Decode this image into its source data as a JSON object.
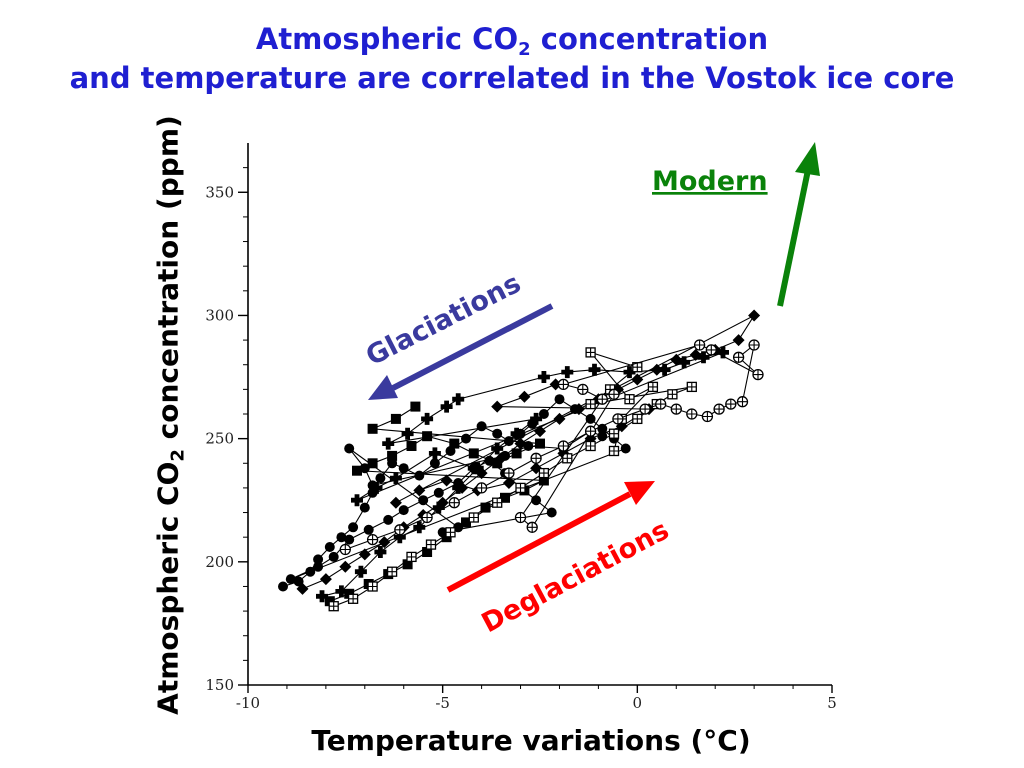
{
  "title": {
    "line1_prefix": "Atmospheric CO",
    "line1_sub": "2",
    "line1_suffix": " concentration",
    "line2": "and temperature are correlated in the Vostok ice core"
  },
  "annotations": {
    "glaciations": "Glaciations",
    "deglaciations": "Deglaciations",
    "modern": "Modern"
  },
  "colors": {
    "title": "#1f1fd1",
    "glaciations_arrow": "#3a3a9e",
    "deglaciations_arrow": "#ff0000",
    "modern_arrow": "#0a820a",
    "markers": "#000000"
  },
  "chart_data": {
    "type": "scatter",
    "xlabel": "Temperature variations (°C)",
    "ylabel_prefix": "Atmospheric CO",
    "ylabel_sub": "2",
    "ylabel_suffix": " concentration (ppm)",
    "xlim": [
      -10,
      5
    ],
    "ylim": [
      150,
      370
    ],
    "xticks": [
      -10,
      -5,
      0,
      5
    ],
    "yticks": [
      150,
      200,
      250,
      300,
      350
    ],
    "xtick_labels": [
      "-10",
      "-5",
      "0",
      "5"
    ],
    "ytick_labels": [
      "150",
      "200",
      "250",
      "300",
      "350"
    ],
    "grid": false,
    "series": [
      {
        "marker": "circle",
        "points": [
          [
            -9.1,
            190
          ],
          [
            -8.7,
            192
          ],
          [
            -8.4,
            196
          ],
          [
            -8.2,
            201
          ],
          [
            -7.9,
            206
          ],
          [
            -7.6,
            210
          ],
          [
            -7.3,
            214
          ],
          [
            -7.0,
            222
          ],
          [
            -6.8,
            228
          ],
          [
            -6.6,
            234
          ],
          [
            -6.3,
            240
          ],
          [
            -6.0,
            238
          ],
          [
            -5.6,
            235
          ],
          [
            -5.2,
            240
          ],
          [
            -4.8,
            245
          ],
          [
            -4.4,
            250
          ],
          [
            -4.0,
            255
          ],
          [
            -3.6,
            252
          ],
          [
            -3.3,
            249
          ],
          [
            -3.0,
            252
          ],
          [
            -2.7,
            256
          ],
          [
            -2.4,
            260
          ],
          [
            -2.0,
            266
          ],
          [
            -1.6,
            262
          ],
          [
            -1.2,
            258
          ],
          [
            -0.9,
            254
          ],
          [
            -0.6,
            250
          ],
          [
            -0.3,
            246
          ],
          [
            -8.9,
            193
          ],
          [
            -8.2,
            198
          ],
          [
            -7.8,
            202
          ],
          [
            -7.4,
            209
          ],
          [
            -6.9,
            213
          ],
          [
            -6.4,
            217
          ],
          [
            -6.0,
            221
          ],
          [
            -5.5,
            225
          ],
          [
            -5.1,
            228
          ],
          [
            -4.6,
            232
          ],
          [
            -4.2,
            238
          ],
          [
            -3.8,
            241
          ],
          [
            -3.4,
            236
          ],
          [
            -3.0,
            230
          ],
          [
            -2.6,
            225
          ],
          [
            -2.2,
            220
          ],
          [
            -5.0,
            212
          ],
          [
            -4.6,
            214
          ],
          [
            -7.4,
            246
          ],
          [
            -7.0,
            238
          ],
          [
            -6.8,
            231
          ],
          [
            -3.4,
            243
          ],
          [
            -2.8,
            247
          ],
          [
            -1.9,
            246
          ],
          [
            -1.2,
            253
          ],
          [
            -0.9,
            251
          ]
        ]
      },
      {
        "marker": "diamond",
        "points": [
          [
            -8.6,
            189
          ],
          [
            -8.0,
            193
          ],
          [
            -7.5,
            198
          ],
          [
            -7.0,
            203
          ],
          [
            -6.5,
            208
          ],
          [
            -6.0,
            214
          ],
          [
            -5.5,
            219
          ],
          [
            -5.0,
            224
          ],
          [
            -4.5,
            230
          ],
          [
            -4.0,
            236
          ],
          [
            -3.5,
            242
          ],
          [
            -3.0,
            248
          ],
          [
            -2.5,
            253
          ],
          [
            -2.0,
            258
          ],
          [
            -1.5,
            262
          ],
          [
            -1.0,
            266
          ],
          [
            -0.5,
            270
          ],
          [
            0.0,
            274
          ],
          [
            0.5,
            278
          ],
          [
            1.0,
            282
          ],
          [
            1.5,
            284
          ],
          [
            2.0,
            286
          ],
          [
            2.6,
            290
          ],
          [
            3.0,
            300
          ],
          [
            -6.2,
            224
          ],
          [
            -5.6,
            229
          ],
          [
            -4.9,
            233
          ],
          [
            -4.1,
            229
          ],
          [
            -3.3,
            232
          ],
          [
            -2.6,
            238
          ],
          [
            -1.9,
            244
          ],
          [
            -1.2,
            250
          ],
          [
            -0.4,
            255
          ],
          [
            0.3,
            262
          ],
          [
            -3.6,
            263
          ],
          [
            -2.9,
            267
          ],
          [
            -2.1,
            272
          ]
        ]
      },
      {
        "marker": "plus",
        "points": [
          [
            -8.1,
            186
          ],
          [
            -7.6,
            188
          ],
          [
            -7.1,
            196
          ],
          [
            -6.6,
            204
          ],
          [
            -6.1,
            210
          ],
          [
            -5.6,
            214
          ],
          [
            -5.1,
            222
          ],
          [
            -4.6,
            230
          ],
          [
            -4.1,
            238
          ],
          [
            -3.6,
            246
          ],
          [
            -3.1,
            252
          ],
          [
            -2.6,
            258
          ],
          [
            -6.4,
            248
          ],
          [
            -5.9,
            252
          ],
          [
            -5.4,
            258
          ],
          [
            -4.9,
            263
          ],
          [
            -4.6,
            266
          ],
          [
            -2.4,
            275
          ],
          [
            -1.8,
            277
          ],
          [
            -1.1,
            278
          ],
          [
            -0.2,
            277
          ],
          [
            0.7,
            278
          ],
          [
            1.2,
            281
          ],
          [
            1.7,
            283
          ],
          [
            2.2,
            285
          ],
          [
            -7.2,
            225
          ],
          [
            -6.7,
            230
          ],
          [
            -6.2,
            234
          ],
          [
            -5.2,
            244
          ],
          [
            -4.2,
            238
          ]
        ]
      },
      {
        "marker": "square",
        "points": [
          [
            -7.9,
            184
          ],
          [
            -7.4,
            187
          ],
          [
            -6.9,
            191
          ],
          [
            -6.4,
            195
          ],
          [
            -5.9,
            199
          ],
          [
            -5.4,
            204
          ],
          [
            -4.9,
            210
          ],
          [
            -4.4,
            216
          ],
          [
            -3.9,
            222
          ],
          [
            -3.4,
            226
          ],
          [
            -2.9,
            229
          ],
          [
            -2.4,
            233
          ],
          [
            -7.2,
            237
          ],
          [
            -6.8,
            240
          ],
          [
            -6.3,
            243
          ],
          [
            -5.8,
            247
          ],
          [
            -5.4,
            251
          ],
          [
            -4.7,
            248
          ],
          [
            -4.2,
            244
          ],
          [
            -3.6,
            240
          ],
          [
            -3.1,
            244
          ],
          [
            -2.5,
            248
          ],
          [
            -6.8,
            254
          ],
          [
            -6.2,
            258
          ],
          [
            -5.7,
            263
          ]
        ]
      },
      {
        "marker": "boxcross",
        "points": [
          [
            -7.8,
            182
          ],
          [
            -7.3,
            185
          ],
          [
            -6.8,
            190
          ],
          [
            -6.3,
            196
          ],
          [
            -5.8,
            202
          ],
          [
            -5.3,
            207
          ],
          [
            -4.8,
            212
          ],
          [
            -4.2,
            218
          ],
          [
            -3.6,
            224
          ],
          [
            -3.0,
            230
          ],
          [
            -2.4,
            236
          ],
          [
            -1.8,
            242
          ],
          [
            -1.2,
            247
          ],
          [
            -0.6,
            252
          ],
          [
            0.0,
            258
          ],
          [
            0.5,
            264
          ],
          [
            0.9,
            268
          ],
          [
            1.4,
            271
          ],
          [
            -1.2,
            264
          ],
          [
            -0.7,
            270
          ],
          [
            0.0,
            279
          ],
          [
            -1.2,
            285
          ],
          [
            -0.2,
            266
          ],
          [
            0.4,
            271
          ],
          [
            -0.4,
            258
          ],
          [
            -0.6,
            245
          ]
        ]
      },
      {
        "marker": "circlecross",
        "points": [
          [
            -7.5,
            205
          ],
          [
            -6.8,
            209
          ],
          [
            -6.1,
            213
          ],
          [
            -5.4,
            218
          ],
          [
            -4.7,
            224
          ],
          [
            -4.0,
            230
          ],
          [
            -3.3,
            236
          ],
          [
            -2.6,
            242
          ],
          [
            -1.9,
            247
          ],
          [
            -1.2,
            253
          ],
          [
            -0.5,
            258
          ],
          [
            0.2,
            262
          ],
          [
            0.6,
            264
          ],
          [
            1.0,
            262
          ],
          [
            1.4,
            260
          ],
          [
            1.8,
            259
          ],
          [
            2.1,
            262
          ],
          [
            2.4,
            264
          ],
          [
            2.7,
            265
          ],
          [
            3.0,
            288
          ],
          [
            2.6,
            283
          ],
          [
            3.1,
            276
          ],
          [
            1.9,
            286
          ],
          [
            1.6,
            288
          ],
          [
            -1.9,
            272
          ],
          [
            -1.4,
            270
          ],
          [
            -0.9,
            266
          ],
          [
            -3.0,
            218
          ],
          [
            -2.7,
            214
          ],
          [
            -0.6,
            268
          ]
        ]
      }
    ]
  }
}
